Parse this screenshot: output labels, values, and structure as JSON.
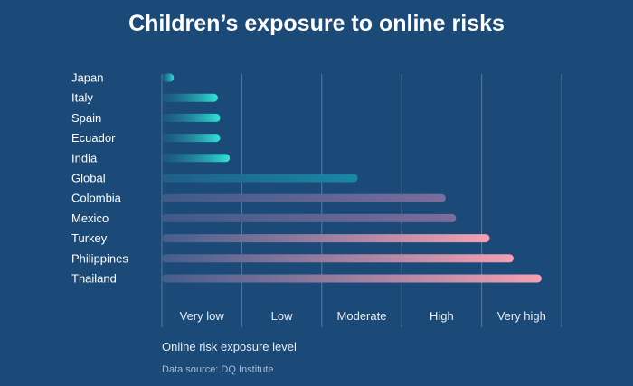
{
  "chart_data": {
    "type": "bar",
    "orientation": "horizontal",
    "title": "Children’s exposure to online risks",
    "xlabel": "Online risk exposure level",
    "ylabel": "",
    "source": "Data source: DQ Institute",
    "xlim": [
      0,
      5
    ],
    "x_tick_labels": [
      "Very low",
      "Low",
      "Moderate",
      "High",
      "Very high"
    ],
    "categories": [
      "Japan",
      "Italy",
      "Spain",
      "Ecuador",
      "India",
      "Global",
      "Colombia",
      "Mexico",
      "Turkey",
      "Philippines",
      "Thailand"
    ],
    "values": [
      0.15,
      0.7,
      0.73,
      0.73,
      0.85,
      2.45,
      3.55,
      3.68,
      4.1,
      4.4,
      4.75
    ],
    "grid": true,
    "colors": {
      "background": "#1b4a78",
      "teal": "#2ee6d6",
      "teal_dark": "#1a7fa0",
      "purple": "#6e6a9a",
      "pink": "#f09aae"
    }
  }
}
